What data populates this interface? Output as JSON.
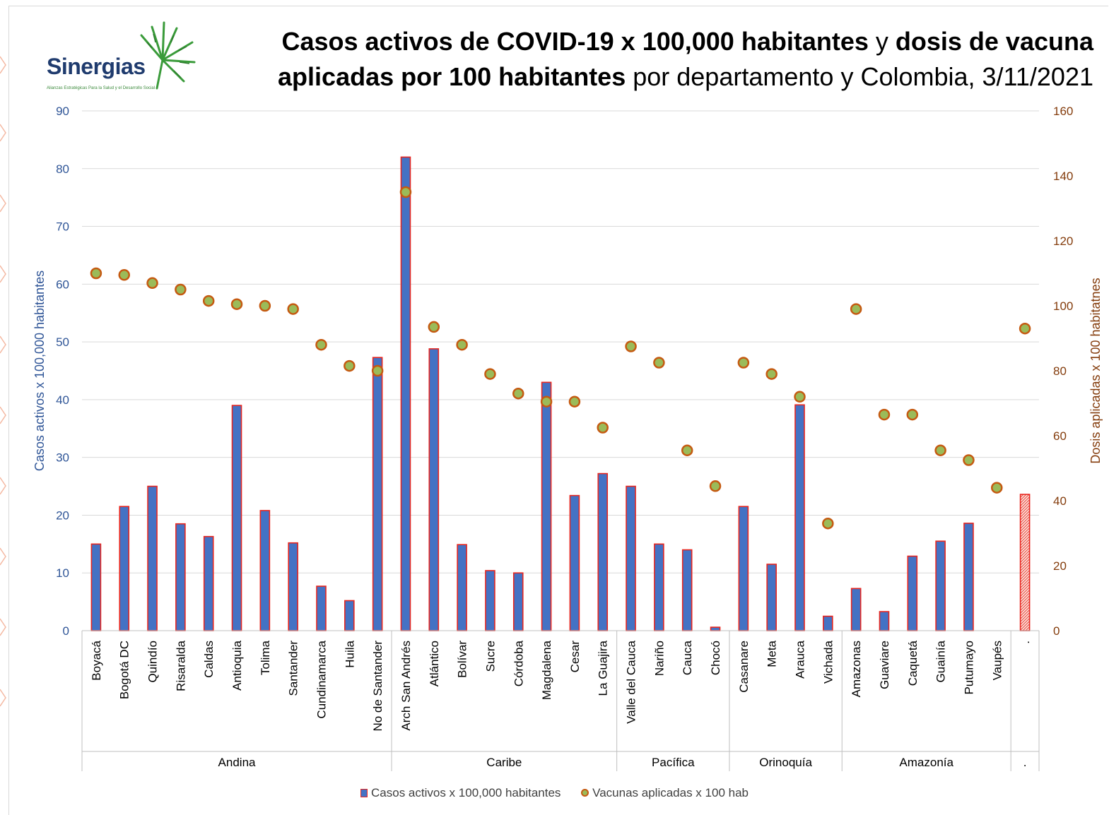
{
  "title": {
    "bold1": "Casos activos de COVID-19 x 100,000 habitantes",
    "normal1": "y",
    "bold2": "dosis de vacuna",
    "bold3": "aplicadas por 100 habitantes",
    "normal2": "por departamento",
    "normal3": "y Colombia, 3/11/2021"
  },
  "logo": {
    "name": "Sinergias",
    "tagline": "Alianzas Estratégicas Para la Salud y el Desarrollo Social"
  },
  "legend": {
    "bars_label": "Casos activos x 100,000 habitantes",
    "dots_label": "Vacunas aplicadas x 100 hab"
  },
  "colors": {
    "bar_fill": "#4472c4",
    "bar_stroke": "#e8261f",
    "dot_fill": "#9bbb59",
    "dot_stroke": "#c55a11",
    "left_axis": "#2f5597",
    "right_axis": "#843c0c",
    "grid": "#d9d9d9"
  },
  "chart_data": {
    "type": "bar",
    "ylabel": "Casos activos x 100,000 habitantes",
    "y2label": "Dosis aplicadas x 100 habitatnes",
    "ylim": [
      0,
      90
    ],
    "y2lim": [
      0,
      160
    ],
    "yticks": [
      0,
      10,
      20,
      30,
      40,
      50,
      60,
      70,
      80,
      90
    ],
    "y2ticks": [
      0,
      20,
      40,
      60,
      80,
      100,
      120,
      140,
      160
    ],
    "grid": true,
    "legend_position": "bottom",
    "categories": [
      "Boyacá",
      "Bogotá DC",
      "Quindío",
      "Risaralda",
      "Caldas",
      "Antioquia",
      "Tolima",
      "Santander",
      "Cundinamarca",
      "Huila",
      "No de Santander",
      "Arch San Andrés",
      "Atlántico",
      "Bolívar",
      "Sucre",
      "Córdoba",
      "Magdalena",
      "Cesar",
      "La Guajira",
      "Valle del Cauca",
      "Nariño",
      "Cauca",
      "Chocó",
      "Casanare",
      "Meta",
      "Arauca",
      "Vichada",
      "Amazonas",
      "Guaviare",
      "Caquetá",
      "Guainía",
      "Putumayo",
      "Vaupés",
      "."
    ],
    "groups": [
      {
        "name": "Andina",
        "count": 11
      },
      {
        "name": "Caribe",
        "count": 8
      },
      {
        "name": "Pacífica",
        "count": 4
      },
      {
        "name": "Orinoquía",
        "count": 4
      },
      {
        "name": "Amazonía",
        "count": 6
      },
      {
        "name": ".",
        "count": 1
      }
    ],
    "series": [
      {
        "name": "Casos activos x 100,000 habitantes",
        "type": "bar",
        "axis": "left",
        "values": [
          15,
          21.5,
          25,
          18.5,
          16.3,
          39,
          20.8,
          15.2,
          7.7,
          5.2,
          47.3,
          82,
          48.8,
          14.9,
          10.4,
          10,
          43,
          23.4,
          27.2,
          25,
          15,
          14,
          0.6,
          21.5,
          11.5,
          39.1,
          2.5,
          7.3,
          3.3,
          12.9,
          15.5,
          18.6,
          0,
          23.6
        ]
      },
      {
        "name": "Vacunas aplicadas x 100 hab",
        "type": "scatter",
        "axis": "right",
        "values": [
          110,
          109.5,
          107,
          105,
          101.5,
          100.5,
          100,
          99,
          88,
          81.5,
          80,
          135,
          93.5,
          88,
          79,
          73,
          70.5,
          70.5,
          62.5,
          87.5,
          82.5,
          55.5,
          44.5,
          82.5,
          79,
          72,
          33,
          99,
          66.5,
          66.5,
          55.5,
          52.5,
          44,
          93
        ]
      }
    ]
  }
}
